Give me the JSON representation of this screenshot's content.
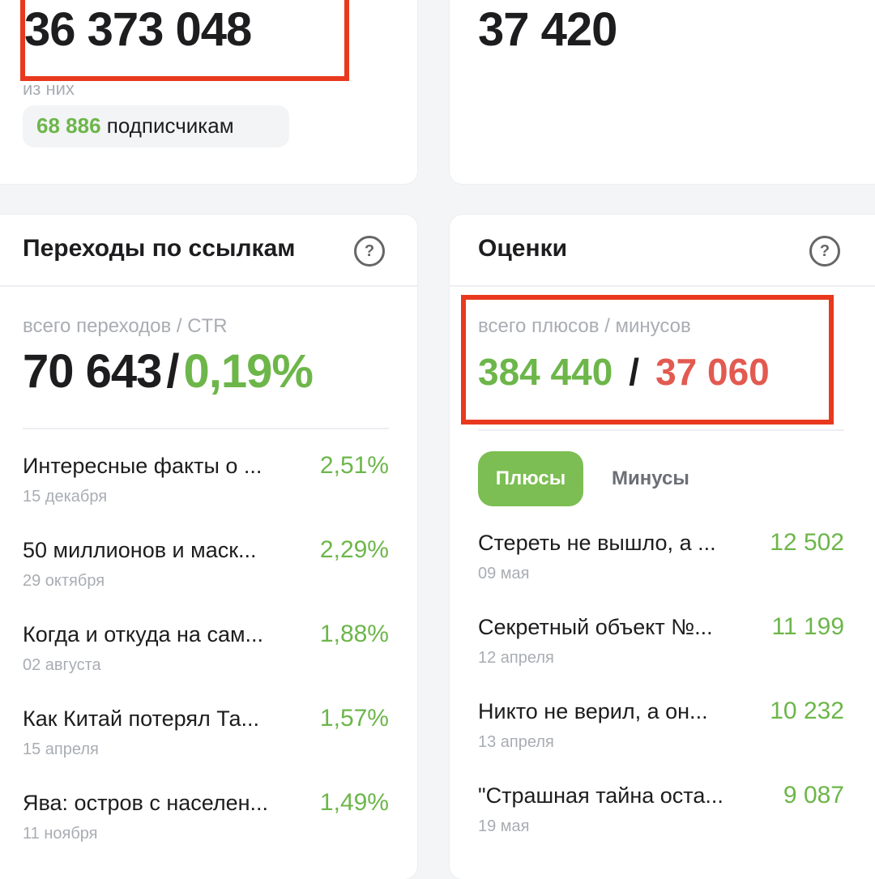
{
  "top_left": {
    "value": "36 373 048",
    "sub_label": "из них",
    "badge_value": "68 886",
    "badge_label": "подписчикам"
  },
  "top_right": {
    "value": "37 420"
  },
  "links_card": {
    "title": "Переходы по ссылкам",
    "help": "?",
    "summary_label": "всего переходов / CTR",
    "total": "70 643",
    "separator": "/",
    "ctr": "0,19%",
    "items": [
      {
        "title": "Интересные факты о ...",
        "date": "15 декабря",
        "value": "2,51%"
      },
      {
        "title": "50 миллионов и маск...",
        "date": "29 октября",
        "value": "2,29%"
      },
      {
        "title": "Когда и откуда на сам...",
        "date": "02 августа",
        "value": "1,88%"
      },
      {
        "title": "Как Китай потерял Та...",
        "date": "15 апреля",
        "value": "1,57%"
      },
      {
        "title": "Ява: остров с населен...",
        "date": "11 ноября",
        "value": "1,49%"
      }
    ]
  },
  "ratings_card": {
    "title": "Оценки",
    "help": "?",
    "summary_label": "всего плюсов / минусов",
    "plus": "384 440",
    "separator": "/",
    "minus": "37 060",
    "tabs": [
      "Плюсы",
      "Минусы"
    ],
    "items": [
      {
        "title": "Стереть не вышло, а ...",
        "date": "09 мая",
        "value": "12 502"
      },
      {
        "title": "Секретный объект №...",
        "date": "12 апреля",
        "value": "11 199"
      },
      {
        "title": "Никто не верил, а он...",
        "date": "13 апреля",
        "value": "10 232"
      },
      {
        "title": "\"Страшная тайна оста...",
        "date": "19 мая",
        "value": "9 087"
      }
    ]
  }
}
